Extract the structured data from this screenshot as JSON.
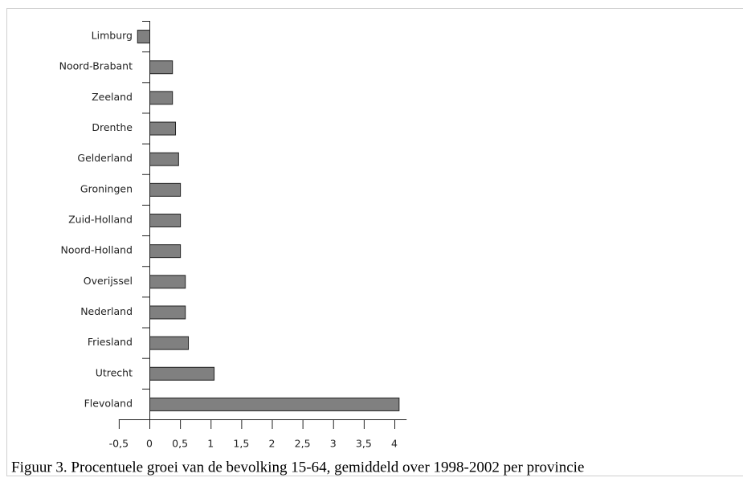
{
  "chart_data": {
    "type": "bar",
    "orientation": "horizontal",
    "caption": "Figuur 3. Procentuele groei van de bevolking 15-64, gemiddeld over 1998-2002 per provincie",
    "categories": [
      "Limburg",
      "Noord-Brabant",
      "Zeeland",
      "Drenthe",
      "Gelderland",
      "Groningen",
      "Zuid-Holland",
      "Noord-Holland",
      "Overijssel",
      "Nederland",
      "Friesland",
      "Utrecht",
      "Flevoland"
    ],
    "values": [
      -0.2,
      0.37,
      0.37,
      0.42,
      0.47,
      0.5,
      0.5,
      0.5,
      0.58,
      0.58,
      0.63,
      1.05,
      4.07
    ],
    "color": "#808080",
    "xlim": [
      -0.5,
      4.2
    ],
    "xticks": [
      {
        "value": -0.5,
        "label": "-0,5"
      },
      0,
      {
        "value": 0.5,
        "label": "0,5"
      },
      1,
      {
        "value": 1.5,
        "label": "1,5"
      },
      2,
      {
        "value": 2.5,
        "label": "2,5"
      },
      3,
      {
        "value": 3.5,
        "label": "3,5"
      },
      4
    ]
  }
}
